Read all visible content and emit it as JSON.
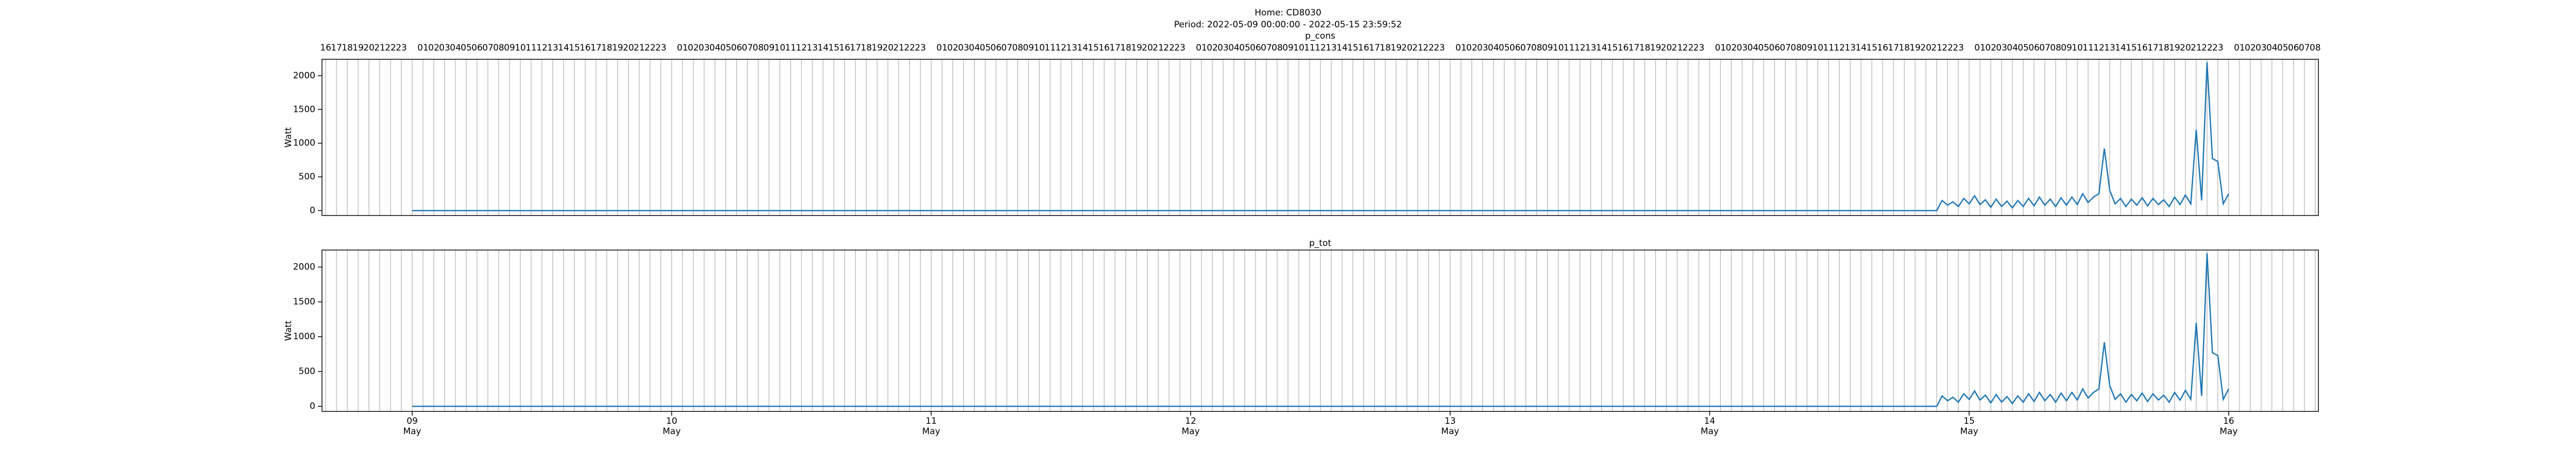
{
  "title": "Home: CD8030",
  "subtitle": "Period: 2022-05-09 00:00:00 - 2022-05-15 23:59:52",
  "chart_data": [
    {
      "type": "line",
      "title": "p_cons",
      "ylabel": "Watt",
      "color": "#1f77b4",
      "x": [
        0,
        141,
        141.5,
        142,
        142.5,
        143,
        143.5,
        144,
        144.5,
        145,
        145.5,
        146,
        146.5,
        147,
        147.5,
        148,
        148.5,
        149,
        149.5,
        150,
        150.5,
        151,
        151.5,
        152,
        152.5,
        153,
        153.5,
        154,
        154.5,
        155,
        155.5,
        156,
        156.5,
        157,
        157.5,
        158,
        158.5,
        159,
        159.5,
        160,
        160.5,
        161,
        161.5,
        162,
        162.5,
        163,
        163.5,
        164,
        164.5,
        165,
        165.5,
        166,
        166.5,
        167,
        167.5,
        168
      ],
      "values": [
        0,
        0,
        150,
        80,
        130,
        60,
        180,
        100,
        220,
        90,
        160,
        50,
        170,
        60,
        140,
        40,
        150,
        60,
        180,
        70,
        200,
        80,
        170,
        60,
        190,
        80,
        200,
        90,
        250,
        120,
        200,
        250,
        920,
        300,
        100,
        180,
        60,
        170,
        80,
        190,
        70,
        180,
        90,
        160,
        60,
        200,
        90,
        230,
        100,
        1200,
        150,
        2200,
        770,
        730,
        100,
        250
      ],
      "xlim": [
        -8.34,
        176.3
      ],
      "ylim": [
        -73,
        2244
      ],
      "yticks": [
        0,
        500,
        1000,
        1500,
        2000
      ],
      "x2ticks": [
        {
          "value": -8,
          "label": "16"
        },
        {
          "value": -7,
          "label": "17"
        },
        {
          "value": -6,
          "label": "18"
        },
        {
          "value": -5,
          "label": "19"
        },
        {
          "value": -4,
          "label": "20"
        },
        {
          "value": -3,
          "label": "21"
        },
        {
          "value": -2,
          "label": "22"
        },
        {
          "value": -1,
          "label": "23"
        },
        {
          "value": 0,
          "label": null
        },
        {
          "value": 1,
          "label": "01"
        },
        {
          "value": 2,
          "label": "02"
        },
        {
          "value": 3,
          "label": "03"
        },
        {
          "value": 4,
          "label": "04"
        },
        {
          "value": 5,
          "label": "05"
        },
        {
          "value": 6,
          "label": "06"
        },
        {
          "value": 7,
          "label": "07"
        },
        {
          "value": 8,
          "label": "08"
        },
        {
          "value": 9,
          "label": "09"
        },
        {
          "value": 10,
          "label": "10"
        },
        {
          "value": 11,
          "label": "11"
        },
        {
          "value": 12,
          "label": "12"
        },
        {
          "value": 13,
          "label": "13"
        },
        {
          "value": 14,
          "label": "14"
        },
        {
          "value": 15,
          "label": "15"
        },
        {
          "value": 16,
          "label": "16"
        },
        {
          "value": 17,
          "label": "17"
        },
        {
          "value": 18,
          "label": "18"
        },
        {
          "value": 19,
          "label": "19"
        },
        {
          "value": 20,
          "label": "20"
        },
        {
          "value": 21,
          "label": "21"
        },
        {
          "value": 22,
          "label": "22"
        },
        {
          "value": 23,
          "label": "23"
        },
        {
          "value": 24,
          "label": null
        },
        {
          "value": 25,
          "label": "01"
        },
        {
          "value": 26,
          "label": "02"
        },
        {
          "value": 27,
          "label": "03"
        },
        {
          "value": 28,
          "label": "04"
        },
        {
          "value": 29,
          "label": "05"
        },
        {
          "value": 30,
          "label": "06"
        },
        {
          "value": 31,
          "label": "07"
        },
        {
          "value": 32,
          "label": "08"
        },
        {
          "value": 33,
          "label": "09"
        },
        {
          "value": 34,
          "label": "10"
        },
        {
          "value": 35,
          "label": "11"
        },
        {
          "value": 36,
          "label": "12"
        },
        {
          "value": 37,
          "label": "13"
        },
        {
          "value": 38,
          "label": "14"
        },
        {
          "value": 39,
          "label": "15"
        },
        {
          "value": 40,
          "label": "16"
        },
        {
          "value": 41,
          "label": "17"
        },
        {
          "value": 42,
          "label": "18"
        },
        {
          "value": 43,
          "label": "19"
        },
        {
          "value": 44,
          "label": "20"
        },
        {
          "value": 45,
          "label": "21"
        },
        {
          "value": 46,
          "label": "22"
        },
        {
          "value": 47,
          "label": "23"
        },
        {
          "value": 48,
          "label": null
        },
        {
          "value": 49,
          "label": "01"
        },
        {
          "value": 50,
          "label": "02"
        },
        {
          "value": 51,
          "label": "03"
        },
        {
          "value": 52,
          "label": "04"
        },
        {
          "value": 53,
          "label": "05"
        },
        {
          "value": 54,
          "label": "06"
        },
        {
          "value": 55,
          "label": "07"
        },
        {
          "value": 56,
          "label": "08"
        },
        {
          "value": 57,
          "label": "09"
        },
        {
          "value": 58,
          "label": "10"
        },
        {
          "value": 59,
          "label": "11"
        },
        {
          "value": 60,
          "label": "12"
        },
        {
          "value": 61,
          "label": "13"
        },
        {
          "value": 62,
          "label": "14"
        },
        {
          "value": 63,
          "label": "15"
        },
        {
          "value": 64,
          "label": "16"
        },
        {
          "value": 65,
          "label": "17"
        },
        {
          "value": 66,
          "label": "18"
        },
        {
          "value": 67,
          "label": "19"
        },
        {
          "value": 68,
          "label": "20"
        },
        {
          "value": 69,
          "label": "21"
        },
        {
          "value": 70,
          "label": "22"
        },
        {
          "value": 71,
          "label": "23"
        },
        {
          "value": 72,
          "label": null
        },
        {
          "value": 73,
          "label": "01"
        },
        {
          "value": 74,
          "label": "02"
        },
        {
          "value": 75,
          "label": "03"
        },
        {
          "value": 76,
          "label": "04"
        },
        {
          "value": 77,
          "label": "05"
        },
        {
          "value": 78,
          "label": "06"
        },
        {
          "value": 79,
          "label": "07"
        },
        {
          "value": 80,
          "label": "08"
        },
        {
          "value": 81,
          "label": "09"
        },
        {
          "value": 82,
          "label": "10"
        },
        {
          "value": 83,
          "label": "11"
        },
        {
          "value": 84,
          "label": "12"
        },
        {
          "value": 85,
          "label": "13"
        },
        {
          "value": 86,
          "label": "14"
        },
        {
          "value": 87,
          "label": "15"
        },
        {
          "value": 88,
          "label": "16"
        },
        {
          "value": 89,
          "label": "17"
        },
        {
          "value": 90,
          "label": "18"
        },
        {
          "value": 91,
          "label": "19"
        },
        {
          "value": 92,
          "label": "20"
        },
        {
          "value": 93,
          "label": "21"
        },
        {
          "value": 94,
          "label": "22"
        },
        {
          "value": 95,
          "label": "23"
        },
        {
          "value": 96,
          "label": null
        },
        {
          "value": 97,
          "label": "01"
        },
        {
          "value": 98,
          "label": "02"
        },
        {
          "value": 99,
          "label": "03"
        },
        {
          "value": 100,
          "label": "04"
        },
        {
          "value": 101,
          "label": "05"
        },
        {
          "value": 102,
          "label": "06"
        },
        {
          "value": 103,
          "label": "07"
        },
        {
          "value": 104,
          "label": "08"
        },
        {
          "value": 105,
          "label": "09"
        },
        {
          "value": 106,
          "label": "10"
        },
        {
          "value": 107,
          "label": "11"
        },
        {
          "value": 108,
          "label": "12"
        },
        {
          "value": 109,
          "label": "13"
        },
        {
          "value": 110,
          "label": "14"
        },
        {
          "value": 111,
          "label": "15"
        },
        {
          "value": 112,
          "label": "16"
        },
        {
          "value": 113,
          "label": "17"
        },
        {
          "value": 114,
          "label": "18"
        },
        {
          "value": 115,
          "label": "19"
        },
        {
          "value": 116,
          "label": "20"
        },
        {
          "value": 117,
          "label": "21"
        },
        {
          "value": 118,
          "label": "22"
        },
        {
          "value": 119,
          "label": "23"
        },
        {
          "value": 120,
          "label": null
        },
        {
          "value": 121,
          "label": "01"
        },
        {
          "value": 122,
          "label": "02"
        },
        {
          "value": 123,
          "label": "03"
        },
        {
          "value": 124,
          "label": "04"
        },
        {
          "value": 125,
          "label": "05"
        },
        {
          "value": 126,
          "label": "06"
        },
        {
          "value": 127,
          "label": "07"
        },
        {
          "value": 128,
          "label": "08"
        },
        {
          "value": 129,
          "label": "09"
        },
        {
          "value": 130,
          "label": "10"
        },
        {
          "value": 131,
          "label": "11"
        },
        {
          "value": 132,
          "label": "12"
        },
        {
          "value": 133,
          "label": "13"
        },
        {
          "value": 134,
          "label": "14"
        },
        {
          "value": 135,
          "label": "15"
        },
        {
          "value": 136,
          "label": "16"
        },
        {
          "value": 137,
          "label": "17"
        },
        {
          "value": 138,
          "label": "18"
        },
        {
          "value": 139,
          "label": "19"
        },
        {
          "value": 140,
          "label": "20"
        },
        {
          "value": 141,
          "label": "21"
        },
        {
          "value": 142,
          "label": "22"
        },
        {
          "value": 143,
          "label": "23"
        },
        {
          "value": 144,
          "label": null
        },
        {
          "value": 145,
          "label": "01"
        },
        {
          "value": 146,
          "label": "02"
        },
        {
          "value": 147,
          "label": "03"
        },
        {
          "value": 148,
          "label": "04"
        },
        {
          "value": 149,
          "label": "05"
        },
        {
          "value": 150,
          "label": "06"
        },
        {
          "value": 151,
          "label": "07"
        },
        {
          "value": 152,
          "label": "08"
        },
        {
          "value": 153,
          "label": "09"
        },
        {
          "value": 154,
          "label": "10"
        },
        {
          "value": 155,
          "label": "11"
        },
        {
          "value": 156,
          "label": "12"
        },
        {
          "value": 157,
          "label": "13"
        },
        {
          "value": 158,
          "label": "14"
        },
        {
          "value": 159,
          "label": "15"
        },
        {
          "value": 160,
          "label": "16"
        },
        {
          "value": 161,
          "label": "17"
        },
        {
          "value": 162,
          "label": "18"
        },
        {
          "value": 163,
          "label": "19"
        },
        {
          "value": 164,
          "label": "20"
        },
        {
          "value": 165,
          "label": "21"
        },
        {
          "value": 166,
          "label": "22"
        },
        {
          "value": 167,
          "label": "23"
        },
        {
          "value": 168,
          "label": null
        },
        {
          "value": 169,
          "label": "01"
        },
        {
          "value": 170,
          "label": "02"
        },
        {
          "value": 171,
          "label": "03"
        },
        {
          "value": 172,
          "label": "04"
        },
        {
          "value": 173,
          "label": "05"
        },
        {
          "value": 174,
          "label": "06"
        },
        {
          "value": 175,
          "label": "07"
        },
        {
          "value": 176,
          "label": "08"
        }
      ]
    },
    {
      "type": "line",
      "title": "p_tot",
      "ylabel": "Watt",
      "color": "#1f77b4",
      "x": [
        0,
        141,
        141.5,
        142,
        142.5,
        143,
        143.5,
        144,
        144.5,
        145,
        145.5,
        146,
        146.5,
        147,
        147.5,
        148,
        148.5,
        149,
        149.5,
        150,
        150.5,
        151,
        151.5,
        152,
        152.5,
        153,
        153.5,
        154,
        154.5,
        155,
        155.5,
        156,
        156.5,
        157,
        157.5,
        158,
        158.5,
        159,
        159.5,
        160,
        160.5,
        161,
        161.5,
        162,
        162.5,
        163,
        163.5,
        164,
        164.5,
        165,
        165.5,
        166,
        166.5,
        167,
        167.5,
        168
      ],
      "values": [
        0,
        0,
        150,
        80,
        130,
        60,
        180,
        100,
        220,
        90,
        160,
        50,
        170,
        60,
        140,
        40,
        150,
        60,
        180,
        70,
        200,
        80,
        170,
        60,
        190,
        80,
        200,
        90,
        250,
        120,
        200,
        250,
        920,
        300,
        100,
        180,
        60,
        170,
        80,
        190,
        70,
        180,
        90,
        160,
        60,
        200,
        90,
        230,
        100,
        1200,
        150,
        2200,
        770,
        730,
        100,
        250
      ],
      "xlim": [
        -8.34,
        176.3
      ],
      "ylim": [
        -73,
        2244
      ],
      "yticks": [
        0,
        500,
        1000,
        1500,
        2000
      ],
      "xticks": [
        {
          "value": 0,
          "label": "09",
          "month": "May"
        },
        {
          "value": 24,
          "label": "10",
          "month": "May"
        },
        {
          "value": 48,
          "label": "11",
          "month": "May"
        },
        {
          "value": 72,
          "label": "12",
          "month": "May"
        },
        {
          "value": 96,
          "label": "13",
          "month": "May"
        },
        {
          "value": 120,
          "label": "14",
          "month": "May"
        },
        {
          "value": 144,
          "label": "15",
          "month": "May"
        },
        {
          "value": 168,
          "label": "16",
          "month": "May"
        }
      ]
    }
  ]
}
